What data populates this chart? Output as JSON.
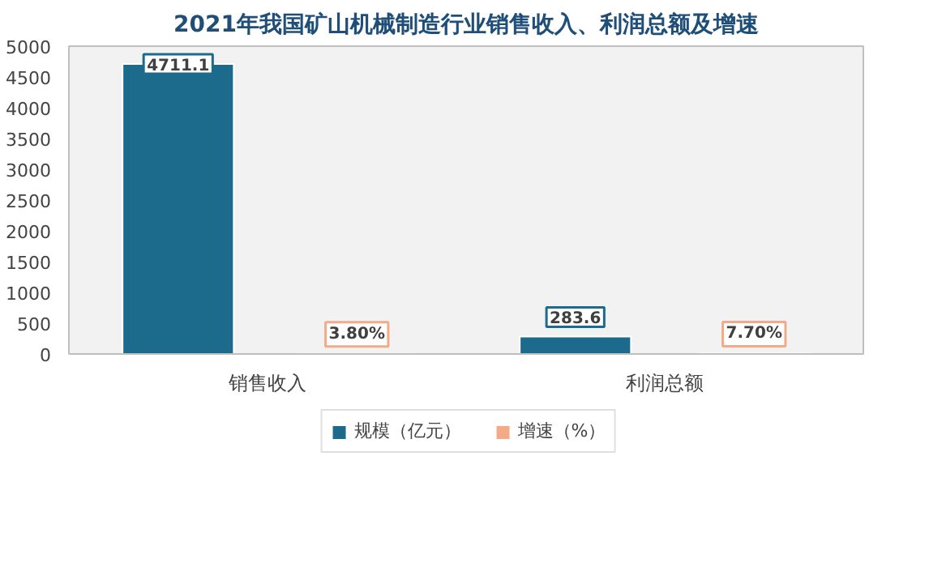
{
  "chart_data": {
    "type": "bar",
    "title": "2021年我国矿山机械制造行业销售收入、利润总额及增速",
    "categories": [
      "销售收入",
      "利润总额"
    ],
    "series": [
      {
        "name": "规模（亿元）",
        "color": "#1c6b8d",
        "values": [
          4711.1,
          283.6
        ],
        "value_labels": [
          "4711.1",
          "283.6"
        ]
      },
      {
        "name": "增速（%）",
        "color": "#f4a987",
        "values": [
          3.8,
          7.7
        ],
        "value_labels": [
          "3.80%",
          "7.70%"
        ]
      }
    ],
    "ylim": [
      0,
      5000
    ],
    "yticks": [
      0,
      500,
      1000,
      1500,
      2000,
      2500,
      3000,
      3500,
      4000,
      4500,
      5000
    ],
    "grid": false,
    "legend": "bottom"
  }
}
